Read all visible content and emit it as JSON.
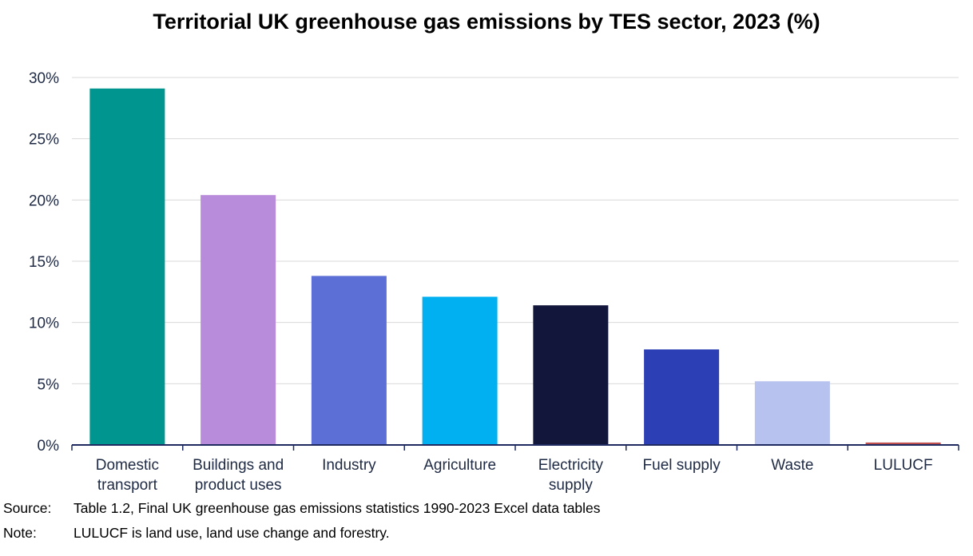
{
  "chart_data": {
    "type": "bar",
    "title": "Territorial UK greenhouse gas emissions by TES sector, 2023 (%)",
    "xlabel": "",
    "ylabel": "",
    "ylim": [
      0,
      30
    ],
    "yticks": [
      "0%",
      "5%",
      "10%",
      "15%",
      "20%",
      "25%",
      "30%"
    ],
    "categories": [
      [
        "Domestic",
        "transport"
      ],
      [
        "Buildings and",
        "product uses"
      ],
      [
        "Industry"
      ],
      [
        "Agriculture"
      ],
      [
        "Electricity",
        "supply"
      ],
      [
        "Fuel supply"
      ],
      [
        "Waste"
      ],
      [
        "LULUCF"
      ]
    ],
    "values": [
      29.1,
      20.4,
      13.8,
      12.1,
      11.4,
      7.8,
      5.2,
      0.2
    ],
    "colors": [
      "#00968f",
      "#b98bdb",
      "#5b6fd6",
      "#00b0f0",
      "#12163a",
      "#2c3fb5",
      "#b8c2ee",
      "#c0504d"
    ],
    "grid": true,
    "legend": "none"
  },
  "footer": {
    "source_label": "Source:",
    "source_text": "Table 1.2, Final UK greenhouse gas emissions statistics 1990-2023 Excel data tables",
    "note_label": "Note:",
    "note_text": "LULUCF is land use, land use change and forestry."
  }
}
